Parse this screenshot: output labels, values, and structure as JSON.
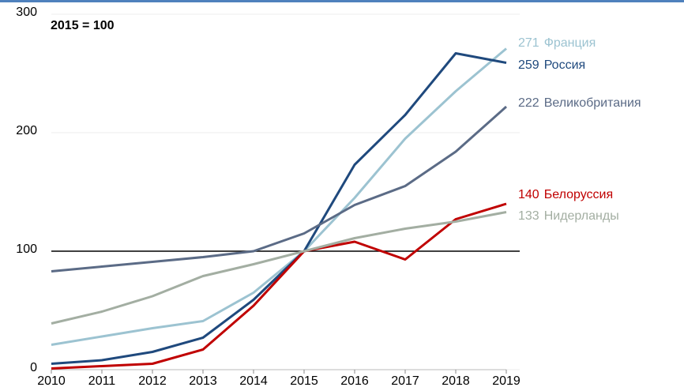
{
  "chart_data": {
    "type": "line",
    "annotation": "2015 = 100",
    "x": [
      2010,
      2011,
      2012,
      2013,
      2014,
      2015,
      2016,
      2017,
      2018,
      2019
    ],
    "xlim": [
      2010,
      2019
    ],
    "xticks": [
      2010,
      2011,
      2012,
      2013,
      2014,
      2015,
      2016,
      2017,
      2018,
      2019
    ],
    "ylim": [
      0,
      300
    ],
    "yticks": [
      0,
      100,
      200,
      300
    ],
    "grid": true,
    "hline": 100,
    "series": [
      {
        "name": "Франция",
        "color": "#9cc3d1",
        "values": [
          21,
          28,
          35,
          41,
          65,
          100,
          145,
          195,
          235,
          271
        ]
      },
      {
        "name": "Россия",
        "color": "#1f497d",
        "values": [
          5,
          8,
          15,
          27,
          59,
          100,
          173,
          215,
          267,
          259
        ]
      },
      {
        "name": "Великобритания",
        "color": "#5b6b86",
        "values": [
          83,
          87,
          91,
          95,
          100,
          115,
          139,
          155,
          184,
          222
        ]
      },
      {
        "name": "Белоруссия",
        "color": "#c00000",
        "values": [
          1,
          3,
          5,
          17,
          54,
          100,
          108,
          93,
          127,
          140
        ]
      },
      {
        "name": "Нидерланды",
        "color": "#a3aea2",
        "values": [
          39,
          49,
          62,
          79,
          89,
          100,
          111,
          119,
          125,
          133
        ]
      }
    ]
  }
}
